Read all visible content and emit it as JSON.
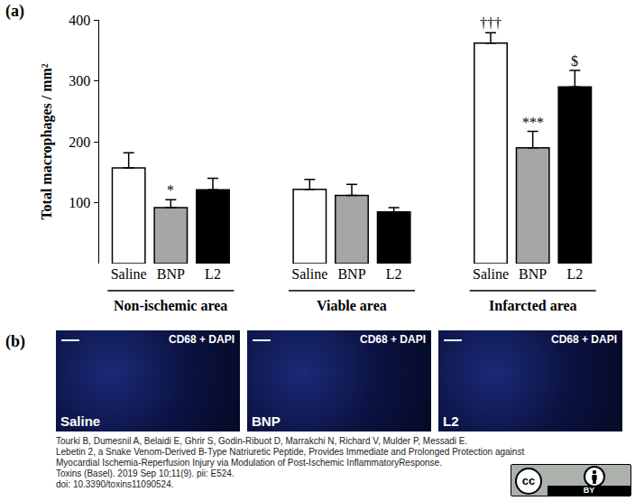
{
  "chart_data": {
    "type": "bar",
    "ylabel": "Total macrophages / mm²",
    "categories": [
      "Saline",
      "BNP",
      "L2",
      "Saline",
      "BNP",
      "L2",
      "Saline",
      "BNP",
      "L2"
    ],
    "groups": [
      {
        "name": "Non-ischemic area",
        "size": 3
      },
      {
        "name": "Viable area",
        "size": 3
      },
      {
        "name": "Infarcted area",
        "size": 3
      }
    ],
    "values": [
      157,
      92,
      121,
      122,
      112,
      85,
      362,
      190,
      290
    ],
    "errors": [
      25,
      13,
      19,
      16,
      18,
      7,
      17,
      27,
      27
    ],
    "colors": [
      "#ffffff",
      "#a6a6a6",
      "#000000",
      "#ffffff",
      "#a6a6a6",
      "#000000",
      "#ffffff",
      "#a6a6a6",
      "#000000"
    ],
    "significance": [
      null,
      "*",
      null,
      null,
      null,
      null,
      "†††",
      "***",
      "$"
    ],
    "ylim": [
      0,
      400
    ],
    "yticks": [
      100,
      200,
      300,
      400
    ],
    "grid": false
  },
  "panel_labels": [
    "(a)",
    "(b)"
  ],
  "image_panel": {
    "stain": "CD68 + DAPI",
    "panels": [
      "Saline",
      "BNP",
      "L2"
    ]
  },
  "citation": [
    "Tourki B, Dumesnil A, Belaidi E, Ghrir S, Godin-Ribuot D, Marrakchi N, Richard V, Mulder P, Messadi E.",
    "Lebetin 2, a Snake Venom-Derived B-Type Natriuretic Peptide, Provides Immediate and Prolonged Protection against",
    "Myocardial Ischemia-Reperfusion Injury via Modulation of Post-Ischemic InflammatoryResponse.",
    "Toxins (Basel). 2019 Sep 10;11(9). pii: E524.",
    "doi: 10.3390/toxins11090524."
  ],
  "license": [
    "cc",
    "BY"
  ]
}
